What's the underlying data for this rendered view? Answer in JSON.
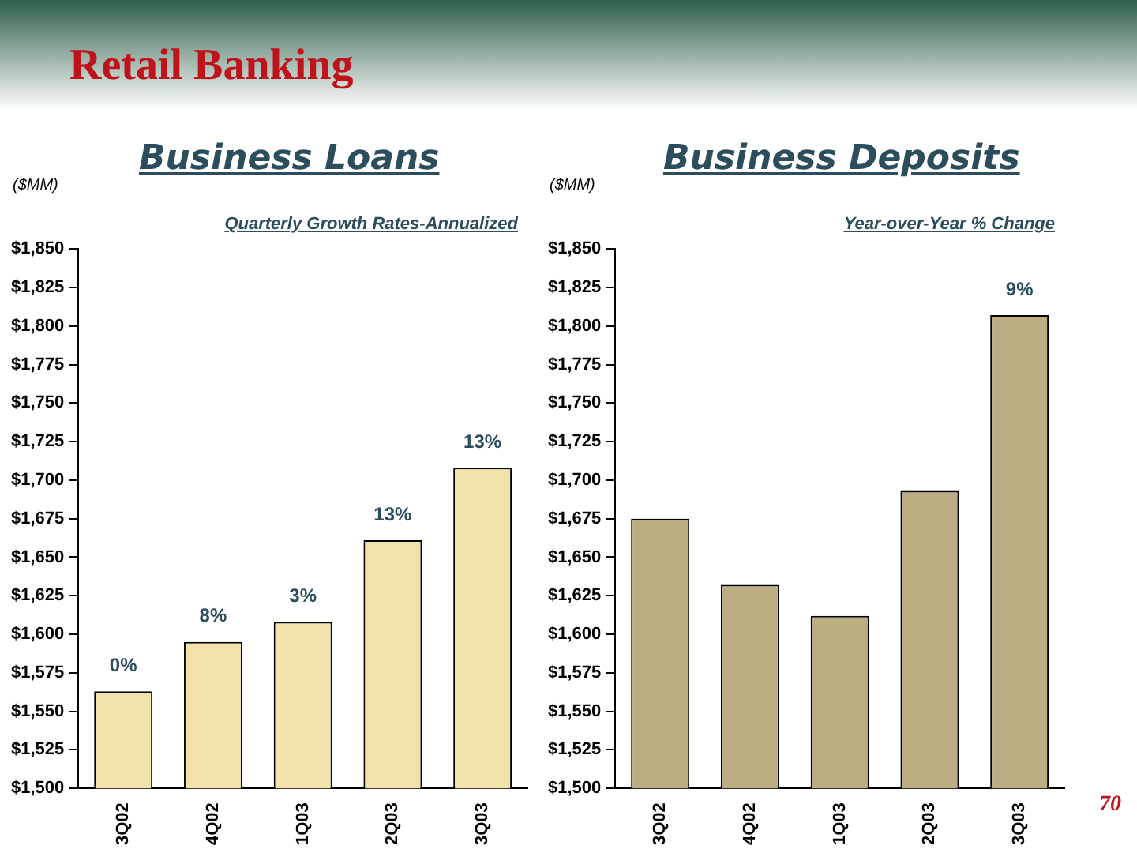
{
  "chart_data": [
    {
      "type": "bar",
      "title": "Business Loans",
      "subtitle": "Quarterly Growth Rates-Annualized",
      "ylabel": "($MM)",
      "annotations": [
        "Retail Banking",
        {
          "text": "0%",
          "x": "3Q02",
          "y": 1563
        },
        {
          "text": "8%",
          "x": "4Q02",
          "y": 1595
        },
        {
          "text": "3%",
          "x": "1Q03",
          "y": 1608
        },
        {
          "text": "13%",
          "x": "2Q03",
          "y": 1661
        },
        {
          "text": "13%",
          "x": "3Q03",
          "y": 1708
        }
      ],
      "categories": [
        "3Q02",
        "4Q02",
        "1Q03",
        "2Q03",
        "3Q03"
      ],
      "values": [
        1563,
        1595,
        1608,
        1661,
        1708
      ],
      "color": "#f0e2aa",
      "ylim": [
        1500,
        1850
      ],
      "yticks": [
        {
          "value": 1500,
          "label": "$1,500"
        },
        {
          "value": 1525,
          "label": "$1,525"
        },
        {
          "value": 1550,
          "label": "$1,550"
        },
        {
          "value": 1575,
          "label": "$1,575"
        },
        {
          "value": 1600,
          "label": "$1,600"
        },
        {
          "value": 1625,
          "label": "$1,625"
        },
        {
          "value": 1650,
          "label": "$1,650"
        },
        {
          "value": 1675,
          "label": "$1,675"
        },
        {
          "value": 1700,
          "label": "$1,700"
        },
        {
          "value": 1725,
          "label": "$1,725"
        },
        {
          "value": 1750,
          "label": "$1,750"
        },
        {
          "value": 1775,
          "label": "$1,775"
        },
        {
          "value": 1800,
          "label": "$1,800"
        },
        {
          "value": 1825,
          "label": "$1,825"
        },
        {
          "value": 1850,
          "label": "$1,850"
        }
      ],
      "grid": false,
      "legend": false
    },
    {
      "type": "bar",
      "title": "Business Deposits",
      "subtitle": "Year-over-Year % Change",
      "ylabel": "($MM)",
      "annotations": [
        "70",
        {
          "text": "9%",
          "x": "3Q03",
          "y": 1807
        }
      ],
      "categories": [
        "3Q02",
        "4Q02",
        "1Q03",
        "2Q03",
        "3Q03"
      ],
      "values": [
        1675,
        1632,
        1612,
        1693,
        1807
      ],
      "color": "#bcae82",
      "ylim": [
        1500,
        1850
      ],
      "yticks": [
        {
          "value": 1500,
          "label": "$1,500"
        },
        {
          "value": 1525,
          "label": "$1,525"
        },
        {
          "value": 1550,
          "label": "$1,550"
        },
        {
          "value": 1575,
          "label": "$1,575"
        },
        {
          "value": 1600,
          "label": "$1,600"
        },
        {
          "value": 1625,
          "label": "$1,625"
        },
        {
          "value": 1650,
          "label": "$1,650"
        },
        {
          "value": 1675,
          "label": "$1,675"
        },
        {
          "value": 1700,
          "label": "$1,700"
        },
        {
          "value": 1725,
          "label": "$1,725"
        },
        {
          "value": 1750,
          "label": "$1,750"
        },
        {
          "value": 1775,
          "label": "$1,775"
        },
        {
          "value": 1800,
          "label": "$1,800"
        },
        {
          "value": 1825,
          "label": "$1,825"
        },
        {
          "value": 1850,
          "label": "$1,850"
        }
      ],
      "grid": false,
      "legend": false
    }
  ]
}
